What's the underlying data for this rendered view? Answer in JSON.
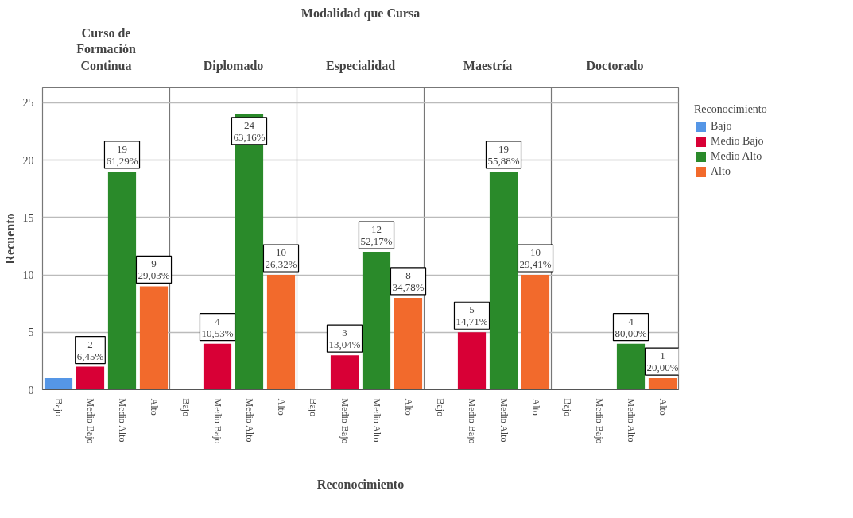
{
  "chart_data": {
    "type": "bar",
    "title": "Modalidad que Cursa",
    "xlabel": "Reconocimiento",
    "ylabel": "Recuento",
    "legend": "right",
    "legend_title": "Reconocimiento",
    "categories": [
      "Curso de Formación Continua",
      "Diplomado",
      "Especialidad",
      "Maestría",
      "Doctorado"
    ],
    "series": [
      {
        "name": "Bajo",
        "color": "#5596e6",
        "values": [
          1,
          0,
          0,
          0,
          0
        ],
        "value_labels": [
          null,
          null,
          null,
          null,
          null
        ]
      },
      {
        "name": "Medio Bajo",
        "color": "#d80036",
        "values": [
          2,
          4,
          3,
          5,
          0
        ],
        "value_labels": [
          "2\n6,45%",
          "4\n10,53%",
          "3\n13,04%",
          "5\n14,71%",
          null
        ]
      },
      {
        "name": "Medio Alto",
        "color": "#2a8a2a",
        "values": [
          19,
          24,
          12,
          19,
          4
        ],
        "value_labels": [
          "19\n61,29%",
          "24\n63,16%",
          "12\n52,17%",
          "19\n55,88%",
          "4\n80,00%"
        ]
      },
      {
        "name": "Alto",
        "color": "#f26a2c",
        "values": [
          9,
          10,
          8,
          10,
          1
        ],
        "value_labels": [
          "9\n29,03%",
          "10\n26,32%",
          "8\n34,78%",
          "10\n29,41%",
          "1\n20,00%"
        ]
      }
    ],
    "ylim": [
      0,
      26.3
    ],
    "yticks": [
      0,
      5,
      10,
      15,
      20,
      25
    ],
    "grid": true
  }
}
